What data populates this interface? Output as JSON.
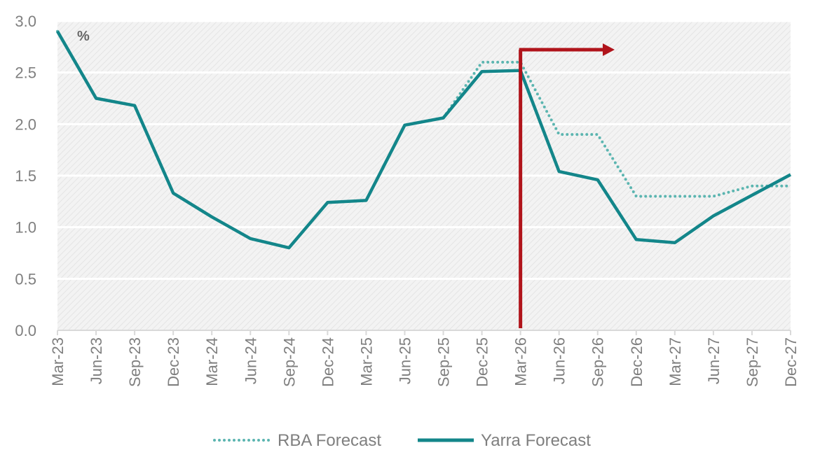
{
  "chart_data": {
    "type": "line",
    "unit_label": "%",
    "categories": [
      "Mar-23",
      "Jun-23",
      "Sep-23",
      "Dec-23",
      "Mar-24",
      "Jun-24",
      "Sep-24",
      "Dec-24",
      "Mar-25",
      "Jun-25",
      "Sep-25",
      "Dec-25",
      "Mar-26",
      "Jun-26",
      "Sep-26",
      "Dec-26",
      "Mar-27",
      "Jun-27",
      "Sep-27",
      "Dec-27"
    ],
    "yticks": [
      "0.0",
      "0.5",
      "1.0",
      "1.5",
      "2.0",
      "2.5",
      "3.0"
    ],
    "ylim": [
      0,
      3
    ],
    "grid": true,
    "legend_position": "bottom",
    "series": [
      {
        "name": "RBA Forecast",
        "style": "dotted",
        "color": "#5bb5b0",
        "values": [
          2.9,
          2.25,
          2.18,
          1.33,
          1.1,
          0.89,
          0.8,
          1.24,
          1.26,
          1.99,
          2.06,
          2.6,
          2.6,
          1.9,
          1.9,
          1.3,
          1.3,
          1.3,
          1.4,
          1.4
        ]
      },
      {
        "name": "Yarra Forecast",
        "style": "solid",
        "color": "#13868a",
        "values": [
          2.9,
          2.25,
          2.18,
          1.33,
          1.1,
          0.89,
          0.8,
          1.24,
          1.26,
          1.99,
          2.06,
          2.51,
          2.52,
          1.54,
          1.46,
          0.88,
          0.85,
          1.11,
          1.31,
          1.51
        ]
      }
    ],
    "marker": {
      "category": "Mar-26",
      "color": "#b0141b",
      "direction": "right"
    }
  }
}
